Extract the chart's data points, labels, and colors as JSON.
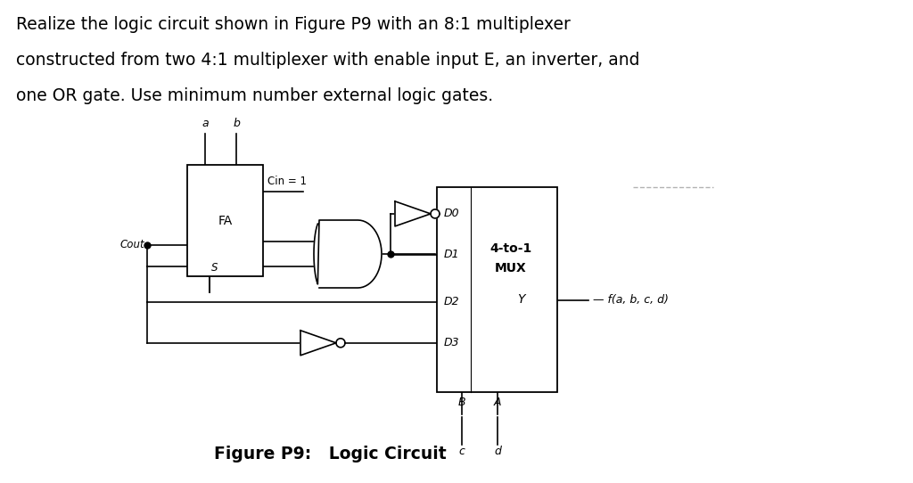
{
  "title_line1": "Realize the logic circuit shown in Figure P9 with an 8:1 multiplexer",
  "title_line2": "constructed from two 4:1 multiplexer with enable input E, an inverter, and",
  "title_line3": "one OR gate. Use minimum number external logic gates.",
  "figure_caption": "Figure P9:   Logic Circuit",
  "bg_color": "#ffffff",
  "text_color": "#000000",
  "title_fontsize": 13.5,
  "caption_fontsize": 13.5,
  "fa_label": "FA",
  "cin_label": "Cin = 1",
  "s_label": "S",
  "cout_label": "Cout",
  "mux_label_top": "4-to-1",
  "mux_label_bot": "MUX",
  "d_labels": [
    "D0",
    "D1",
    "D2",
    "D3"
  ],
  "ba_label_B": "B",
  "ba_label_A": "A",
  "y_label": "Y",
  "f_label": "f(a, b, c, d)",
  "a_label": "a",
  "b_label": "b",
  "c_label": "c",
  "d_label": "d",
  "dashed_line": true
}
